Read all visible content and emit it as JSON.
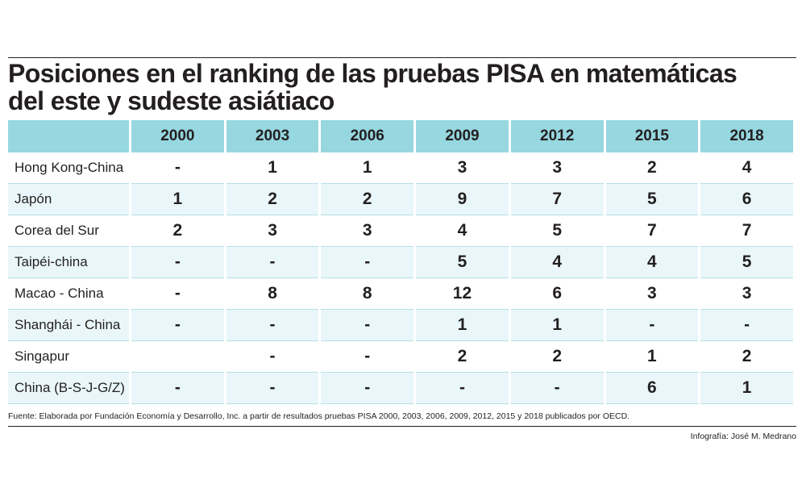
{
  "title_line1": "Posiciones en el ranking de las pruebas PISA en matemáticas",
  "title_line2": "del  este y sudeste  asiátiaco",
  "source": "Fuente: Elaborada por Fundación Economía y Desarrollo, Inc. a partir de resultados pruebas PISA 2000, 2003, 2006, 2009, 2012, 2015 y 2018 publicados por OECD.",
  "credit": "Infografía: José M. Medrano",
  "colors": {
    "header_bg": "#96d7e0",
    "stripe_bg": "#eaf7fa",
    "text": "#231f20"
  },
  "chart_data": {
    "type": "table",
    "columns": [
      "",
      "2000",
      "2003",
      "2006",
      "2009",
      "2012",
      "2015",
      "2018"
    ],
    "rows": [
      [
        "Hong Kong-China",
        "-",
        "1",
        "1",
        "3",
        "3",
        "2",
        "4"
      ],
      [
        "Japón",
        "1",
        "2",
        "2",
        "9",
        "7",
        "5",
        "6"
      ],
      [
        "Corea del Sur",
        "2",
        "3",
        "3",
        "4",
        "5",
        "7",
        "7"
      ],
      [
        "Taipéi-china",
        "-",
        "-",
        "-",
        "5",
        "4",
        "4",
        "5"
      ],
      [
        "Macao - China",
        "-",
        "8",
        "8",
        "12",
        "6",
        "3",
        "3"
      ],
      [
        "Shanghái - China",
        "-",
        "-",
        "-",
        "1",
        "1",
        "-",
        "-"
      ],
      [
        "Singapur",
        "",
        "-",
        "-",
        "2",
        "2",
        "1",
        "2"
      ],
      [
        "China (B-S-J-G/Z)",
        "-",
        "-",
        "-",
        "-",
        "-",
        "6",
        "1"
      ]
    ]
  }
}
